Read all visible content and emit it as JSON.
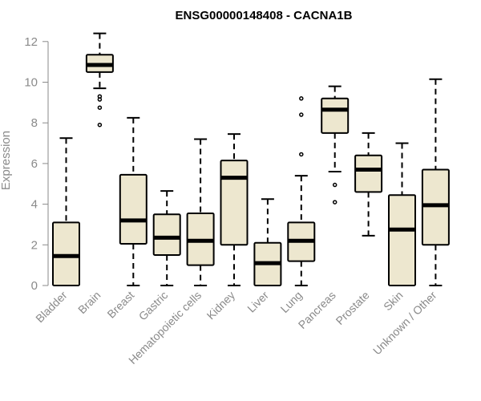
{
  "chart_data": {
    "type": "boxplot",
    "title": "ENSG00000148408 - CACNA1B",
    "xlabel": "",
    "ylabel": "Expression",
    "ylim": [
      0,
      12.5
    ],
    "yticks": [
      0,
      2,
      4,
      6,
      8,
      10,
      12
    ],
    "box_fill": "#ede7cf",
    "categories": [
      "Bladder",
      "Brain",
      "Breast",
      "Gastric",
      "Hematopoietic cells",
      "Kidney",
      "Liver",
      "Lung",
      "Pancreas",
      "Prostate",
      "Skin",
      "Unknown / Other"
    ],
    "boxes": [
      {
        "min": 0,
        "q1": 0,
        "median": 1.45,
        "q3": 3.1,
        "max": 7.25,
        "outliers": []
      },
      {
        "min": 9.7,
        "q1": 10.5,
        "median": 10.85,
        "q3": 11.35,
        "max": 12.4,
        "outliers": [
          9.3,
          9.15,
          8.75,
          7.9
        ]
      },
      {
        "min": 0,
        "q1": 2.05,
        "median": 3.2,
        "q3": 5.45,
        "max": 8.25,
        "outliers": []
      },
      {
        "min": 0,
        "q1": 1.5,
        "median": 2.35,
        "q3": 3.5,
        "max": 4.65,
        "outliers": []
      },
      {
        "min": 0,
        "q1": 1.0,
        "median": 2.2,
        "q3": 3.55,
        "max": 7.2,
        "outliers": []
      },
      {
        "min": 0,
        "q1": 2.0,
        "median": 5.3,
        "q3": 6.15,
        "max": 7.45,
        "outliers": []
      },
      {
        "min": 0,
        "q1": 0,
        "median": 1.1,
        "q3": 2.1,
        "max": 4.25,
        "outliers": []
      },
      {
        "min": 0,
        "q1": 1.2,
        "median": 2.2,
        "q3": 3.1,
        "max": 5.4,
        "outliers": [
          9.2,
          8.4,
          6.45
        ]
      },
      {
        "min": 5.6,
        "q1": 7.5,
        "median": 8.65,
        "q3": 9.2,
        "max": 9.8,
        "outliers": [
          4.95,
          4.1
        ]
      },
      {
        "min": 2.45,
        "q1": 4.6,
        "median": 5.7,
        "q3": 6.4,
        "max": 7.5,
        "outliers": []
      },
      {
        "min": 0,
        "q1": 0,
        "median": 2.75,
        "q3": 4.45,
        "max": 7.0,
        "outliers": []
      },
      {
        "min": 0,
        "q1": 2.0,
        "median": 3.95,
        "q3": 5.7,
        "max": 10.15,
        "outliers": []
      }
    ]
  }
}
